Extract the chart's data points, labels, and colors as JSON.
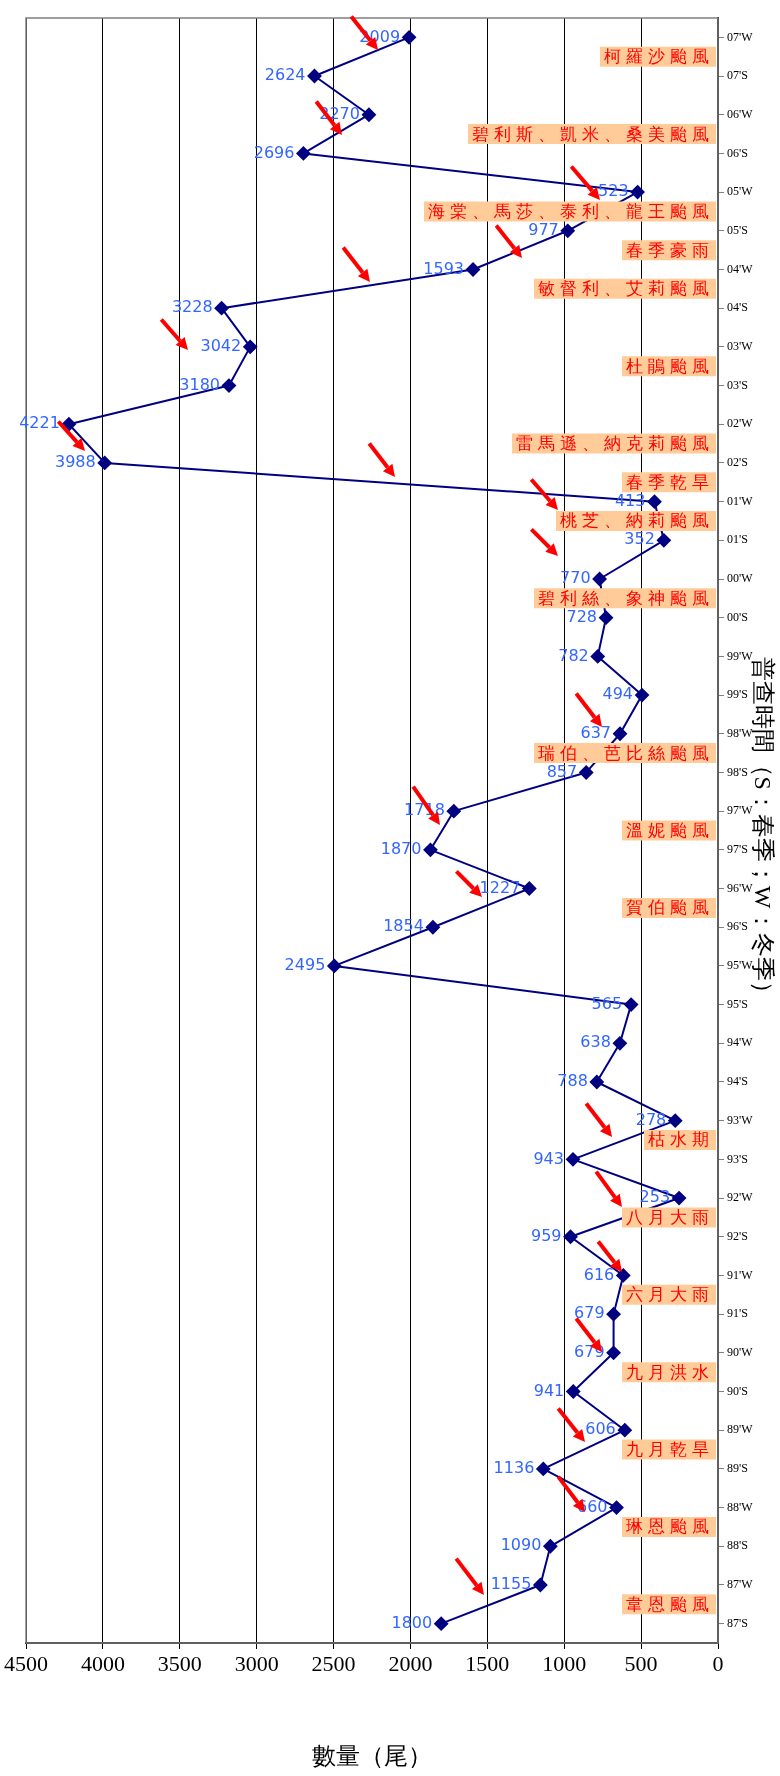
{
  "chart_data": {
    "type": "line",
    "orientation": "horizontal",
    "ylabel": "普查時間（S：春季；W：冬季）",
    "xlabel": "數量（尾）",
    "categories": [
      "07'W",
      "07'S",
      "06'W",
      "06'S",
      "05'W",
      "05'S",
      "04'W",
      "04'S",
      "03'W",
      "03'S",
      "02'W",
      "02'S",
      "01'W",
      "01'S",
      "00'W",
      "00'S",
      "99'W",
      "99'S",
      "98'W",
      "98'S",
      "97'W",
      "97'S",
      "96'W",
      "96'S",
      "95'W",
      "95'S",
      "94'W",
      "94'S",
      "93'W",
      "93'S",
      "92'W",
      "92'S",
      "91'W",
      "91'S",
      "90'W",
      "90'S",
      "89'W",
      "89'S",
      "88'W",
      "88'S",
      "87'W",
      "87'S"
    ],
    "series": [
      {
        "color": "#000080",
        "values": [
          2009,
          2624,
          2270,
          2696,
          523,
          977,
          1593,
          3228,
          3042,
          3180,
          4221,
          3988,
          413,
          352,
          770,
          728,
          782,
          494,
          637,
          857,
          1718,
          1870,
          1227,
          1854,
          2495,
          565,
          638,
          788,
          278,
          943,
          253,
          959,
          616,
          679,
          679,
          941,
          606,
          1136,
          660,
          1090,
          1155,
          1800
        ]
      }
    ],
    "xlim": [
      4500,
      0
    ],
    "xticks": [
      0,
      500,
      1000,
      1500,
      2000,
      2500,
      3000,
      3500,
      4000,
      4500
    ],
    "grid": "x",
    "marker": "diamond",
    "data_labels": true,
    "annotations": [
      "韋恩颱風",
      "琳恩颱風",
      "九月乾旱",
      "九月洪水",
      "六月大雨",
      "八月大雨",
      "枯水期",
      "賀伯颱風",
      "溫妮颱風",
      "瑞伯、芭比絲颱風",
      "碧利絲、象神颱風",
      "桃芝、納莉颱風",
      "春季乾旱",
      "雷馬遜、納克莉颱風",
      "杜鵑颱風",
      "敏督利、艾莉颱風",
      "春季豪雨",
      "海棠、馬莎、泰利、龍王颱風",
      "碧利斯、凱米、桑美颱風",
      "柯羅沙颱風"
    ]
  }
}
